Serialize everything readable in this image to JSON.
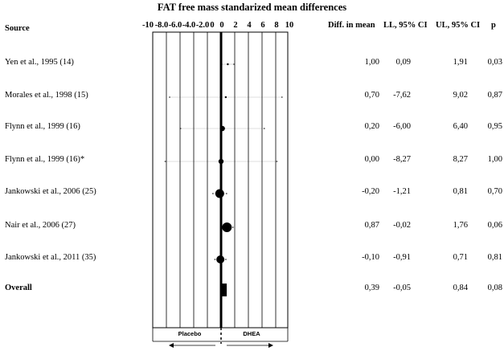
{
  "chart_data": {
    "type": "forest",
    "title": "FAT free mass standarized mean differences",
    "source_header": "Source",
    "column_headers": [
      "Diff. in mean",
      "LL, 95% CI",
      "UL, 95% CI",
      "p"
    ],
    "x_ticks": [
      "-10",
      "-8.0",
      "-6.0",
      "-4.0",
      "-2.0",
      "0",
      "0",
      "2",
      "4",
      "6",
      "8",
      "10"
    ],
    "xlim": [
      -10,
      10
    ],
    "favors_left": "Placebo",
    "favors_right": "DHEA",
    "rows": [
      {
        "source": "Yen et al., 1995 (14)",
        "diff": "1,00",
        "ll": "0,09",
        "ul": "1,91",
        "p": "0,03",
        "value": 1.0,
        "lower": 0.09,
        "upper": 1.91
      },
      {
        "source": "Morales et al., 1998 (15)",
        "diff": "0,70",
        "ll": "-7,62",
        "ul": "9,02",
        "p": "0,87",
        "value": 0.7,
        "lower": -7.62,
        "upper": 9.02
      },
      {
        "source": "Flynn et al., 1999 (16)",
        "diff": "0,20",
        "ll": "-6,00",
        "ul": "6,40",
        "p": "0,95",
        "value": 0.2,
        "lower": -6.0,
        "upper": 6.4
      },
      {
        "source": "Flynn et al., 1999  (16)*",
        "diff": "0,00",
        "ll": "-8,27",
        "ul": "8,27",
        "p": "1,00",
        "value": 0.0,
        "lower": -8.27,
        "upper": 8.27
      },
      {
        "source": "Jankowski et al., 2006 (25)",
        "diff": "-0,20",
        "ll": "-1,21",
        "ul": "0,81",
        "p": "0,70",
        "value": -0.2,
        "lower": -1.21,
        "upper": 0.81
      },
      {
        "source": "Nair et al., 2006 (27)",
        "diff": "0,87",
        "ll": "-0,02",
        "ul": "1,76",
        "p": "0,06",
        "value": 0.87,
        "lower": -0.02,
        "upper": 1.76
      },
      {
        "source": "Jankowski et al., 2011 (35)",
        "diff": "-0,10",
        "ll": "-0,91",
        "ul": "0,71",
        "p": "0,81",
        "value": -0.1,
        "lower": -0.91,
        "upper": 0.71
      }
    ],
    "overall": {
      "source": "Overall",
      "diff": "0,39",
      "ll": "-0,05",
      "ul": "0,84",
      "p": "0,08",
      "value": 0.39,
      "lower": -0.05,
      "upper": 0.84
    }
  }
}
